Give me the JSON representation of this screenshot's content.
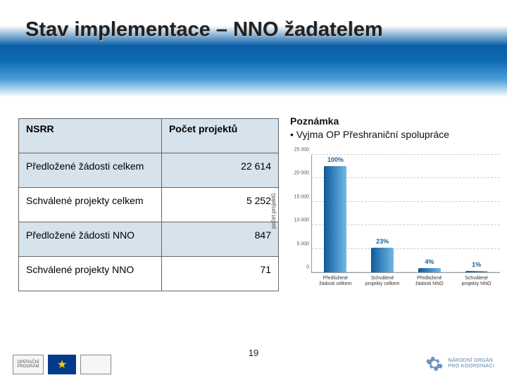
{
  "title": "Stav implementace – NNO žadatelem",
  "table": {
    "header": {
      "col1": "NSRR",
      "col2": "Počet projektů"
    },
    "rows": [
      {
        "label": "Předložené žádosti celkem",
        "value": "22 614"
      },
      {
        "label": "Schválené projekty celkem",
        "value": "5 252"
      },
      {
        "label": "Předložené žádosti NNO",
        "value": "847"
      },
      {
        "label": "Schválené projekty NNO",
        "value": "71"
      }
    ]
  },
  "note": {
    "heading": "Poznámka",
    "bullet": "• Vyjma OP Přeshraniční spolupráce"
  },
  "chart": {
    "type": "bar",
    "ylabel": "počet projektů",
    "ylim_max": 25000,
    "ytick_step": 5000,
    "background_color": "#ffffff",
    "grid_color": "#cccccc",
    "bars": [
      {
        "label": "Předložené žádosti celkem",
        "value": 22614,
        "pct": "100%",
        "color_start": "#0f5b9a",
        "color_end": "#6fb8e8"
      },
      {
        "label": "Schválené projekty celkem",
        "value": 5252,
        "pct": "23%",
        "color_start": "#0f5b9a",
        "color_end": "#6fb8e8"
      },
      {
        "label": "Předložené žádosti NNO",
        "value": 847,
        "pct": "4%",
        "color_start": "#0f5b9a",
        "color_end": "#6fb8e8"
      },
      {
        "label": "Schválené projekty NNO",
        "value": 71,
        "pct": "1%",
        "color_start": "#0f5b9a",
        "color_end": "#6fb8e8"
      }
    ]
  },
  "page_number": "19",
  "footer": {
    "left_logo1": "OPERAČNÍ PROGRAM",
    "right_line1": "NÁRODNÍ ORGÁN",
    "right_line2": "PRO KOORDINACI"
  }
}
